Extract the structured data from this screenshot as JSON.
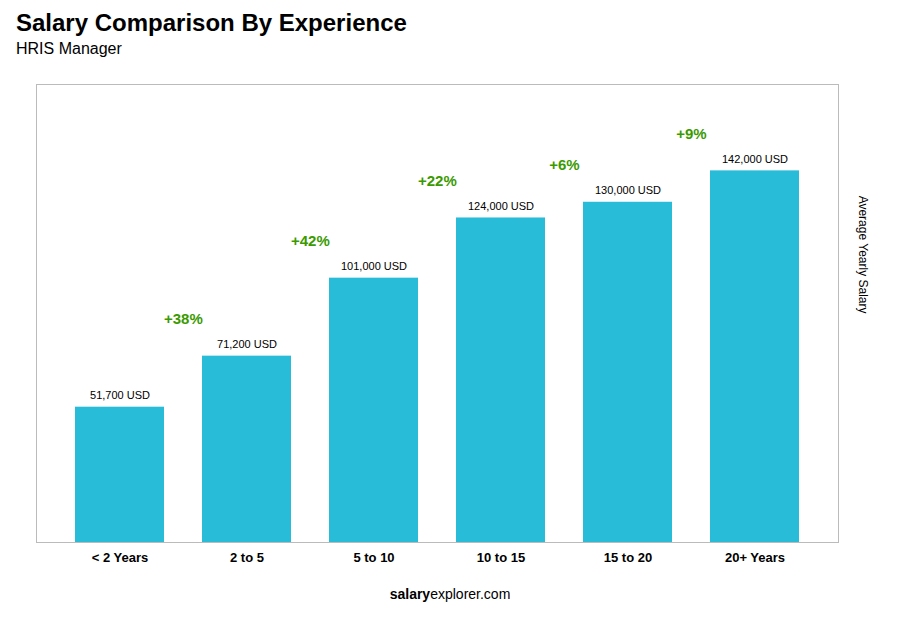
{
  "chart_data": {
    "type": "bar",
    "title": "Salary Comparison By Experience",
    "subtitle": "HRIS Manager",
    "ylabel": "Average Yearly Salary",
    "categories": [
      "< 2 Years",
      "2 to 5",
      "5 to 10",
      "10 to 15",
      "15 to 20",
      "20+ Years"
    ],
    "values": [
      51700,
      71200,
      101000,
      124000,
      130000,
      142000
    ],
    "value_labels": [
      "51,700 USD",
      "71,200 USD",
      "101,000 USD",
      "124,000 USD",
      "130,000 USD",
      "142,000 USD"
    ],
    "data_labels": true,
    "annotations": [
      "+38%",
      "+42%",
      "+22%",
      "+6%",
      "+9%"
    ],
    "watermark": [
      "salary",
      "explorer.com"
    ],
    "color": "#29bcd8",
    "ylim": [
      0,
      175000
    ],
    "tick_labels": "x",
    "grid": false
  }
}
